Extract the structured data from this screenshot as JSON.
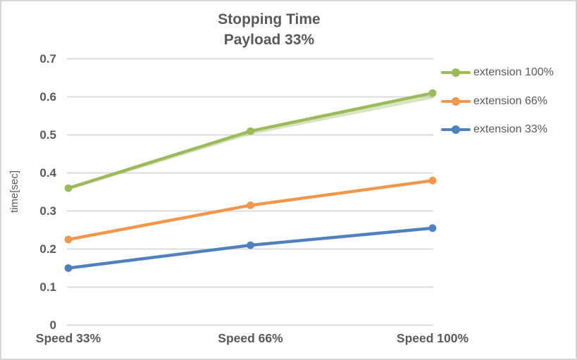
{
  "window": {
    "background": "#ffffff",
    "border_color": "#d6d6d6",
    "text_color": "#595959",
    "grid_color": "#dbdbdb"
  },
  "chart_data": {
    "type": "line",
    "title": "Stopping Time",
    "subtitle": "Payload 33%",
    "ylabel": "time[sec]",
    "xlabel": "",
    "categories": [
      "Speed 33%",
      "Speed 66%",
      "Speed 100%"
    ],
    "series": [
      {
        "name": "extension 100%",
        "color": "#9bbb59",
        "values": [
          0.36,
          0.51,
          0.61
        ]
      },
      {
        "name": "extension 66%",
        "color": "#f2964b",
        "values": [
          0.225,
          0.315,
          0.38
        ]
      },
      {
        "name": "extension 33%",
        "color": "#4e81bd",
        "values": [
          0.15,
          0.21,
          0.255
        ]
      }
    ],
    "ghost_series": {
      "name": "extension 100% (faint duplicate line)",
      "color": "#9bbb59",
      "opacity": 0.38,
      "values": [
        0.36,
        0.505,
        0.6
      ]
    },
    "ylim": [
      0,
      0.7
    ],
    "ytick_labels": [
      "0",
      "0.1",
      "0.2",
      "0.3",
      "0.4",
      "0.5",
      "0.6",
      "0.7"
    ],
    "grid": true,
    "legend_position": "right"
  }
}
